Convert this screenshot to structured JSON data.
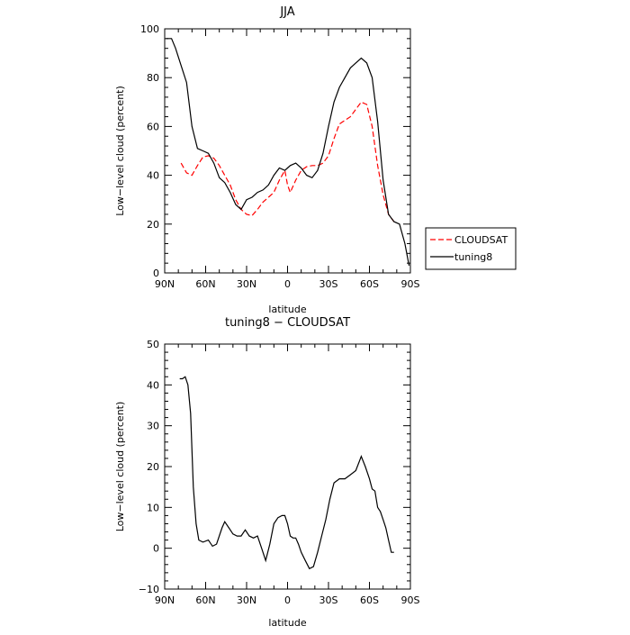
{
  "chart_data": [
    {
      "type": "line",
      "title": "JJA",
      "xlabel": "latitude",
      "ylabel": "Low−level cloud (percent)",
      "xlim": [
        90,
        -90
      ],
      "ylim": [
        0,
        100
      ],
      "x_ticks": [
        90,
        60,
        30,
        0,
        -30,
        -60,
        -90
      ],
      "x_tick_labels": [
        "90N",
        "60N",
        "30N",
        "0",
        "30S",
        "60S",
        "90S"
      ],
      "y_ticks": [
        0,
        20,
        40,
        60,
        80,
        100
      ],
      "y_tick_labels": [
        "0",
        "20",
        "40",
        "60",
        "80",
        "100"
      ],
      "legend_position": "right",
      "series": [
        {
          "name": "CLOUDSAT",
          "color": "#ff0000",
          "dashed": true,
          "x": [
            78,
            74,
            70,
            66,
            62,
            58,
            54,
            50,
            46,
            42,
            38,
            34,
            30,
            26,
            22,
            18,
            14,
            10,
            6,
            2,
            0,
            -2,
            -6,
            -10,
            -14,
            -18,
            -22,
            -26,
            -30,
            -34,
            -38,
            -42,
            -46,
            -50,
            -54,
            -58,
            -62,
            -66,
            -70,
            -74,
            -78
          ],
          "y": [
            45,
            41,
            40,
            44,
            47.5,
            48,
            47,
            44,
            40,
            36,
            30,
            26,
            24,
            23.5,
            26,
            29,
            31,
            33,
            38,
            42,
            36,
            33,
            38,
            42,
            43.5,
            44,
            44,
            45,
            48,
            55,
            61,
            62.5,
            64,
            67,
            70,
            69,
            60,
            44,
            32,
            24,
            21
          ]
        },
        {
          "name": "tuning8",
          "color": "#000000",
          "dashed": false,
          "x": [
            89,
            85,
            82,
            78,
            74,
            70,
            66,
            62,
            58,
            54,
            50,
            46,
            42,
            38,
            34,
            30,
            26,
            22,
            18,
            14,
            10,
            6,
            2,
            0,
            -2,
            -6,
            -10,
            -14,
            -18,
            -22,
            -26,
            -30,
            -34,
            -38,
            -42,
            -46,
            -50,
            -54,
            -58,
            -62,
            -66,
            -70,
            -74,
            -78,
            -82,
            -86,
            -89
          ],
          "y": [
            96,
            96,
            92,
            85,
            78,
            60,
            51,
            50,
            49,
            45,
            39,
            37,
            33,
            28,
            26,
            30,
            31,
            33,
            34,
            36,
            40,
            43,
            42,
            43,
            44,
            45,
            43,
            40,
            39,
            42,
            49,
            60,
            70,
            76,
            80,
            84,
            86,
            88,
            86,
            80,
            62,
            38,
            24,
            21,
            20,
            12,
            3
          ]
        }
      ]
    },
    {
      "type": "line",
      "title": "tuning8 − CLOUDSAT",
      "xlabel": "latitude",
      "ylabel": "Low−level cloud (percent)",
      "xlim": [
        90,
        -90
      ],
      "ylim": [
        -10,
        50
      ],
      "x_ticks": [
        90,
        60,
        30,
        0,
        -30,
        -60,
        -90
      ],
      "x_tick_labels": [
        "90N",
        "60N",
        "30N",
        "0",
        "30S",
        "60S",
        "90S"
      ],
      "y_ticks": [
        -10,
        0,
        10,
        20,
        30,
        40,
        50
      ],
      "y_tick_labels": [
        "−10",
        "0",
        "10",
        "20",
        "30",
        "40",
        "50"
      ],
      "series": [
        {
          "color": "#000000",
          "dashed": false,
          "x": [
            79,
            77,
            75,
            73,
            71,
            69,
            67,
            65,
            62,
            58,
            55,
            52,
            48,
            46,
            43,
            40,
            37,
            34,
            31,
            28,
            25,
            22,
            19,
            16,
            13,
            10,
            7,
            4,
            2,
            0,
            -2,
            -4,
            -6,
            -8,
            -10,
            -13,
            -16,
            -19,
            -22,
            -25,
            -28,
            -31,
            -34,
            -38,
            -42,
            -46,
            -50,
            -54,
            -57,
            -60,
            -62,
            -64,
            -66,
            -68,
            -70,
            -72,
            -74,
            -76,
            -78
          ],
          "y": [
            41.5,
            41.5,
            42,
            40,
            33,
            15,
            6,
            2,
            1.5,
            2,
            0.5,
            1,
            5,
            6.5,
            5,
            3.5,
            3,
            3,
            4.5,
            3,
            2.5,
            3,
            0,
            -3,
            1,
            6,
            7.5,
            8,
            8,
            6,
            3,
            2.5,
            2.5,
            1,
            -1,
            -3,
            -5,
            -4.5,
            -1,
            3,
            7,
            12,
            16,
            17,
            17,
            18,
            19,
            22.5,
            20,
            17,
            14.5,
            14,
            10,
            9,
            7,
            5,
            2,
            -1,
            -1
          ]
        }
      ]
    }
  ]
}
